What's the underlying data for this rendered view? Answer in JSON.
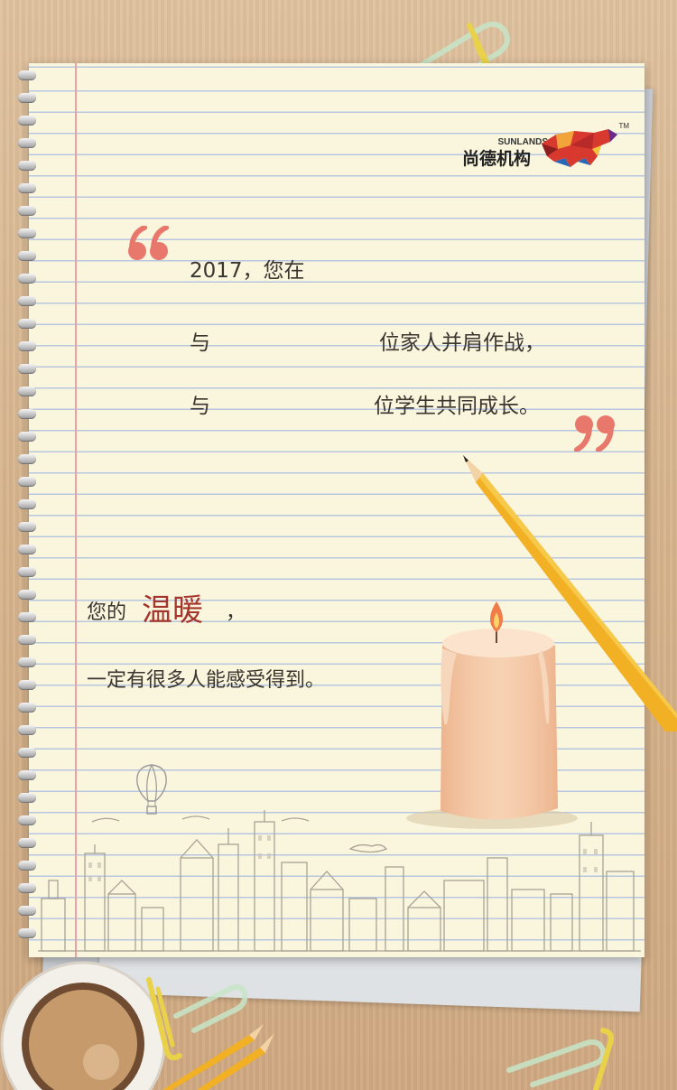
{
  "brand": {
    "name_cn": "尚德机构",
    "name_en": "SUNLANDS",
    "trademark": "TM"
  },
  "message": {
    "line1": "2017，您在",
    "line2_prefix": "与",
    "line2_suffix": "位家人并肩作战，",
    "line3_prefix": "与",
    "line3_suffix": "位学生共同成长。",
    "warmth_prefix": "您的",
    "warmth_main": "温暖",
    "warmth_comma": "，",
    "closing": "一定有很多人能感受得到。"
  },
  "icons": {
    "open_quote": "open-quote-icon",
    "close_quote": "close-quote-icon",
    "logo": "bull-logo-icon",
    "candle": "candle-icon",
    "pencil": "pencil-icon",
    "coffee": "coffee-cup-icon",
    "paperclip": "paperclip-icon",
    "balloon": "hot-air-balloon-icon",
    "city": "city-skyline-icon"
  },
  "colors": {
    "quote": "#e8776c",
    "warmth": "#a5362d",
    "text": "#3b3530",
    "paper": "#faf5dd",
    "rule": "#b8c6e0"
  }
}
